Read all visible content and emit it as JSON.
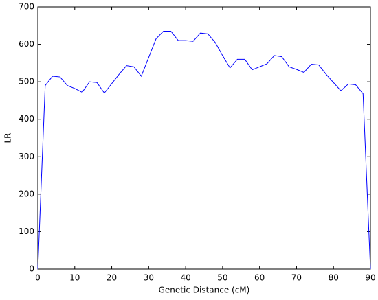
{
  "chart_data": {
    "type": "line",
    "xlabel": "Genetic Distance (cM)",
    "ylabel": "LR",
    "x": [
      0,
      2,
      4,
      6,
      8,
      10,
      12,
      14,
      16,
      18,
      20,
      22,
      24,
      26,
      28,
      30,
      32,
      34,
      36,
      38,
      40,
      42,
      44,
      46,
      48,
      50,
      52,
      54,
      56,
      58,
      60,
      62,
      64,
      66,
      68,
      70,
      72,
      74,
      76,
      78,
      80,
      82,
      84,
      86,
      88,
      90
    ],
    "values": [
      0,
      490,
      515,
      513,
      490,
      482,
      472,
      500,
      498,
      470,
      495,
      520,
      543,
      540,
      515,
      565,
      615,
      635,
      635,
      610,
      610,
      608,
      630,
      628,
      605,
      570,
      537,
      560,
      560,
      532,
      540,
      548,
      570,
      567,
      540,
      533,
      525,
      547,
      545,
      520,
      498,
      476,
      494,
      492,
      468,
      0
    ],
    "color": "#0000ff",
    "xlim": [
      0,
      90
    ],
    "xticks": [
      0,
      10,
      20,
      30,
      40,
      50,
      60,
      70,
      80,
      90
    ],
    "ylim": [
      0,
      700
    ],
    "yticks": [
      0,
      100,
      200,
      300,
      400,
      500,
      600,
      700
    ],
    "grid": false
  }
}
